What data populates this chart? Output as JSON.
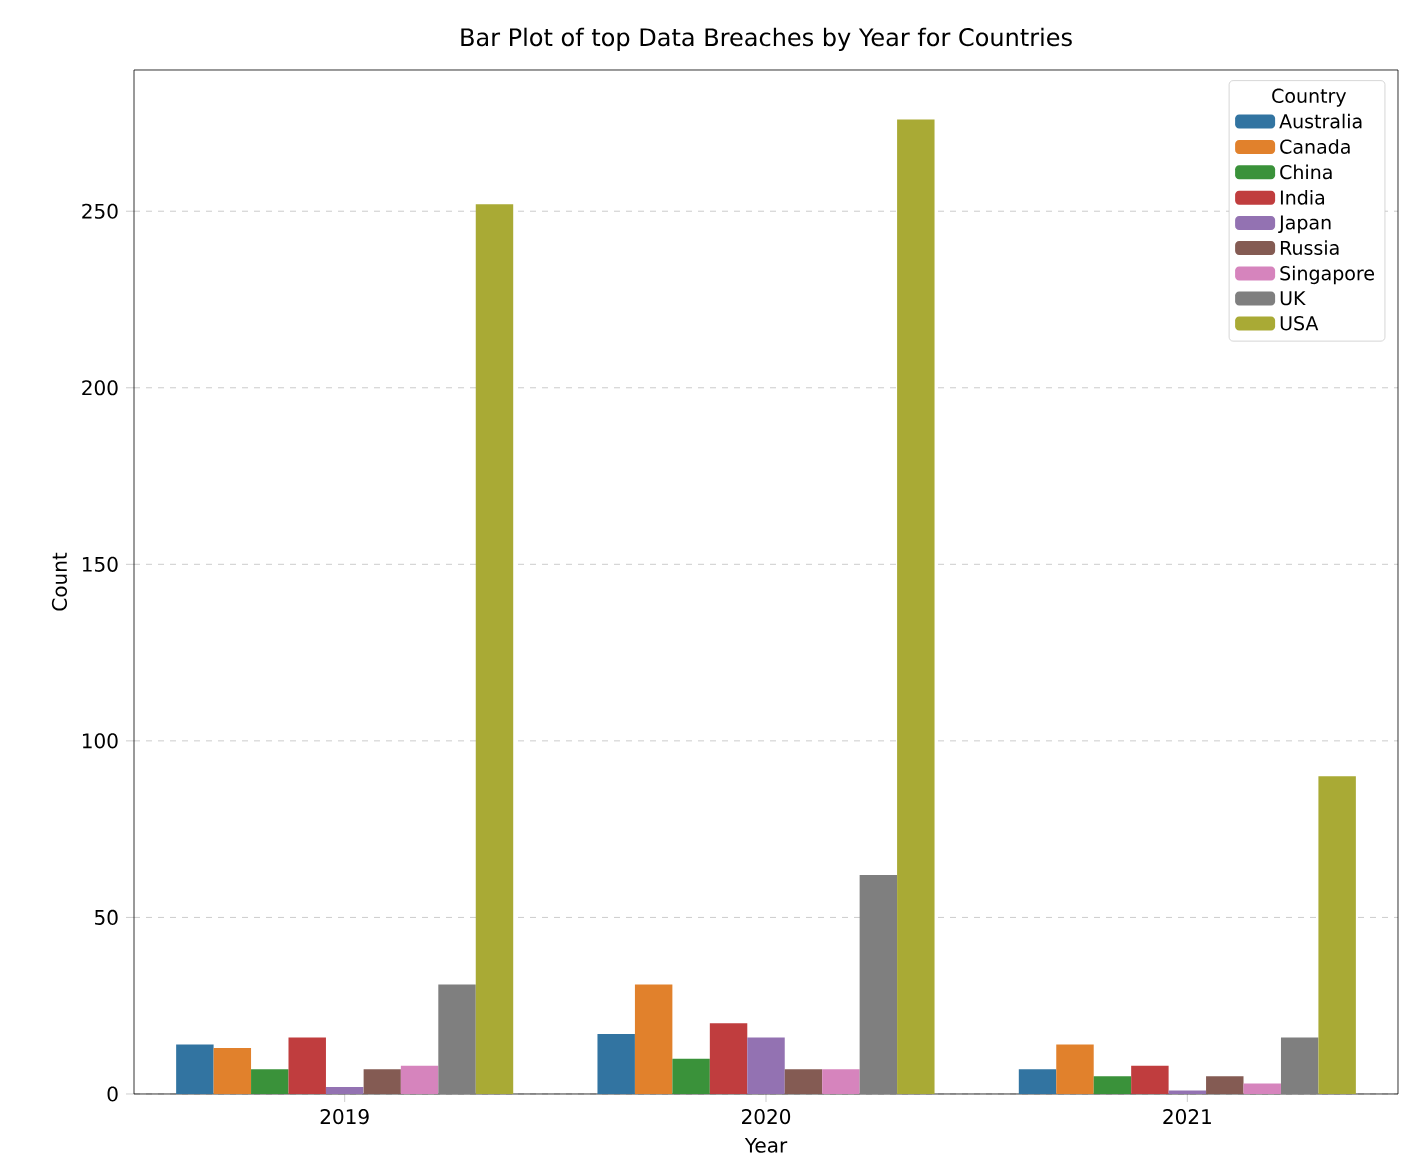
{
  "chart_data": {
    "type": "bar",
    "title": "Bar Plot of top Data Breaches by Year for Countries",
    "xlabel": "Year",
    "ylabel": "Count",
    "legend_title": "Country",
    "categories": [
      "2019",
      "2020",
      "2021"
    ],
    "series": [
      {
        "name": "Australia",
        "color": "#3274a1",
        "values": [
          14,
          17,
          7
        ]
      },
      {
        "name": "Canada",
        "color": "#e1812c",
        "values": [
          13,
          31,
          14
        ]
      },
      {
        "name": "China",
        "color": "#3a923a",
        "values": [
          7,
          10,
          5
        ]
      },
      {
        "name": "India",
        "color": "#c03d3e",
        "values": [
          16,
          20,
          8
        ]
      },
      {
        "name": "Japan",
        "color": "#9372b2",
        "values": [
          2,
          16,
          1
        ]
      },
      {
        "name": "Russia",
        "color": "#845b53",
        "values": [
          7,
          7,
          5
        ]
      },
      {
        "name": "Singapore",
        "color": "#d684bd",
        "values": [
          8,
          7,
          3
        ]
      },
      {
        "name": "UK",
        "color": "#7f7f7f",
        "values": [
          31,
          62,
          16
        ]
      },
      {
        "name": "USA",
        "color": "#a9aa35",
        "values": [
          252,
          276,
          90
        ]
      }
    ],
    "ylim": [
      0,
      290
    ],
    "yticks": [
      0,
      50,
      100,
      150,
      200,
      250
    ],
    "grid": "y",
    "legend": "top right"
  }
}
